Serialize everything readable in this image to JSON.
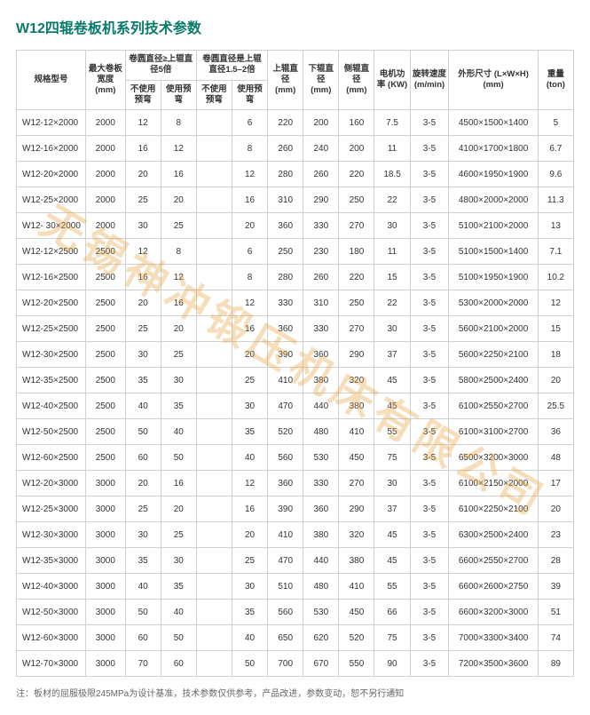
{
  "title": "W12四辊卷板机系列技术参数",
  "watermark": "无锡神冲锻压机床有限公司",
  "note": "注：板材的屈服极限245MPa为设计基准，技术参数仅供参考，产品改进，参数变动，恕不另行通知",
  "headers": {
    "model": "规格型号",
    "maxWidth": "最大卷板宽度 (mm)",
    "group5x": "卷圆直径≥上辊直径5倍",
    "group2x": "卷圆直径是上辊直径1.5–2倍",
    "noPrebend": "不使用预弯",
    "usePrebend": "使用预弯",
    "upper": "上辊直径 (mm)",
    "lower": "下辊直径 (mm)",
    "side": "侧辊直径 (mm)",
    "power": "电机功率 (KW)",
    "speed": "旋转速度 (m/min)",
    "dim": "外形尺寸 (L×W×H) (mm)",
    "weight": "重量 (ton)"
  },
  "rows": [
    {
      "m": "W12-12×2000",
      "w": "2000",
      "a": "12",
      "b": "8",
      "c": "",
      "d": "6",
      "up": "220",
      "lo": "200",
      "si": "160",
      "pw": "7.5",
      "sp": "3-5",
      "dm": "4500×1500×1400",
      "wt": "5"
    },
    {
      "m": "W12-16×2000",
      "w": "2000",
      "a": "16",
      "b": "12",
      "c": "",
      "d": "8",
      "up": "260",
      "lo": "240",
      "si": "200",
      "pw": "11",
      "sp": "3-5",
      "dm": "4100×1700×1800",
      "wt": "6.7"
    },
    {
      "m": "W12-20×2000",
      "w": "2000",
      "a": "20",
      "b": "16",
      "c": "",
      "d": "12",
      "up": "280",
      "lo": "260",
      "si": "220",
      "pw": "18.5",
      "sp": "3-5",
      "dm": "4600×1950×1900",
      "wt": "9.6"
    },
    {
      "m": "W12-25×2000",
      "w": "2000",
      "a": "25",
      "b": "20",
      "c": "",
      "d": "16",
      "up": "310",
      "lo": "290",
      "si": "250",
      "pw": "22",
      "sp": "3-5",
      "dm": "4800×2000×2000",
      "wt": "11.3"
    },
    {
      "m": "W12- 30×2000",
      "w": "2000",
      "a": "30",
      "b": "25",
      "c": "",
      "d": "20",
      "up": "360",
      "lo": "330",
      "si": "270",
      "pw": "30",
      "sp": "3-5",
      "dm": "5100×2100×2000",
      "wt": "13"
    },
    {
      "m": "W12-12×2500",
      "w": "2500",
      "a": "12",
      "b": "8",
      "c": "",
      "d": "6",
      "up": "250",
      "lo": "230",
      "si": "180",
      "pw": "11",
      "sp": "3-5",
      "dm": "5100×1500×1400",
      "wt": "7.1"
    },
    {
      "m": "W12-16×2500",
      "w": "2500",
      "a": "16",
      "b": "12",
      "c": "",
      "d": "8",
      "up": "280",
      "lo": "260",
      "si": "220",
      "pw": "15",
      "sp": "3-5",
      "dm": "5100×1950×1900",
      "wt": "10.2"
    },
    {
      "m": "W12-20×2500",
      "w": "2500",
      "a": "20",
      "b": "16",
      "c": "",
      "d": "12",
      "up": "330",
      "lo": "310",
      "si": "250",
      "pw": "22",
      "sp": "3-5",
      "dm": "5300×2000×2000",
      "wt": "12"
    },
    {
      "m": "W12-25×2500",
      "w": "2500",
      "a": "25",
      "b": "20",
      "c": "",
      "d": "16",
      "up": "360",
      "lo": "330",
      "si": "270",
      "pw": "30",
      "sp": "3-5",
      "dm": "5600×2100×2000",
      "wt": "15"
    },
    {
      "m": "W12-30×2500",
      "w": "2500",
      "a": "30",
      "b": "25",
      "c": "",
      "d": "20",
      "up": "390",
      "lo": "360",
      "si": "290",
      "pw": "37",
      "sp": "3-5",
      "dm": "5600×2250×2100",
      "wt": "18"
    },
    {
      "m": "W12-35×2500",
      "w": "2500",
      "a": "35",
      "b": "30",
      "c": "",
      "d": "25",
      "up": "410",
      "lo": "380",
      "si": "320",
      "pw": "45",
      "sp": "3-5",
      "dm": "5800×2500×2400",
      "wt": "20"
    },
    {
      "m": "W12-40×2500",
      "w": "2500",
      "a": "40",
      "b": "35",
      "c": "",
      "d": "30",
      "up": "470",
      "lo": "440",
      "si": "380",
      "pw": "45",
      "sp": "3-5",
      "dm": "6100×2550×2700",
      "wt": "25.5"
    },
    {
      "m": "W12-50×2500",
      "w": "2500",
      "a": "50",
      "b": "40",
      "c": "",
      "d": "35",
      "up": "520",
      "lo": "480",
      "si": "410",
      "pw": "55",
      "sp": "3-5",
      "dm": "6100×3100×2700",
      "wt": "36"
    },
    {
      "m": "W12-60×2500",
      "w": "2500",
      "a": "60",
      "b": "50",
      "c": "",
      "d": "40",
      "up": "560",
      "lo": "530",
      "si": "450",
      "pw": "75",
      "sp": "3-5",
      "dm": "6500×3200×3000",
      "wt": "48"
    },
    {
      "m": "W12-20×3000",
      "w": "3000",
      "a": "20",
      "b": "16",
      "c": "",
      "d": "12",
      "up": "360",
      "lo": "330",
      "si": "270",
      "pw": "30",
      "sp": "3-5",
      "dm": "6100×2150×2000",
      "wt": "17"
    },
    {
      "m": "W12-25×3000",
      "w": "3000",
      "a": "25",
      "b": "20",
      "c": "",
      "d": "16",
      "up": "390",
      "lo": "360",
      "si": "290",
      "pw": "37",
      "sp": "3-5",
      "dm": "6100×2250×2100",
      "wt": "20"
    },
    {
      "m": "W12-30×3000",
      "w": "3000",
      "a": "30",
      "b": "25",
      "c": "",
      "d": "20",
      "up": "410",
      "lo": "380",
      "si": "320",
      "pw": "45",
      "sp": "3-5",
      "dm": "6300×2500×2400",
      "wt": "23"
    },
    {
      "m": "W12-35×3000",
      "w": "3000",
      "a": "35",
      "b": "30",
      "c": "",
      "d": "25",
      "up": "470",
      "lo": "440",
      "si": "380",
      "pw": "45",
      "sp": "3-5",
      "dm": "6600×2550×2700",
      "wt": "28"
    },
    {
      "m": "W12-40×3000",
      "w": "3000",
      "a": "40",
      "b": "35",
      "c": "",
      "d": "30",
      "up": "510",
      "lo": "480",
      "si": "410",
      "pw": "55",
      "sp": "3-5",
      "dm": "6600×2600×2750",
      "wt": "39"
    },
    {
      "m": "W12-50×3000",
      "w": "3000",
      "a": "50",
      "b": "40",
      "c": "",
      "d": "35",
      "up": "560",
      "lo": "530",
      "si": "450",
      "pw": "66",
      "sp": "3-5",
      "dm": "6600×3200×3000",
      "wt": "51"
    },
    {
      "m": "W12-60×3000",
      "w": "3000",
      "a": "60",
      "b": "50",
      "c": "",
      "d": "40",
      "up": "650",
      "lo": "620",
      "si": "520",
      "pw": "75",
      "sp": "3-5",
      "dm": "7000×3300×3400",
      "wt": "74"
    },
    {
      "m": "W12-70×3000",
      "w": "3000",
      "a": "70",
      "b": "60",
      "c": "",
      "d": "50",
      "up": "700",
      "lo": "670",
      "si": "550",
      "pw": "90",
      "sp": "3-5",
      "dm": "7200×3500×3600",
      "wt": "89"
    }
  ]
}
